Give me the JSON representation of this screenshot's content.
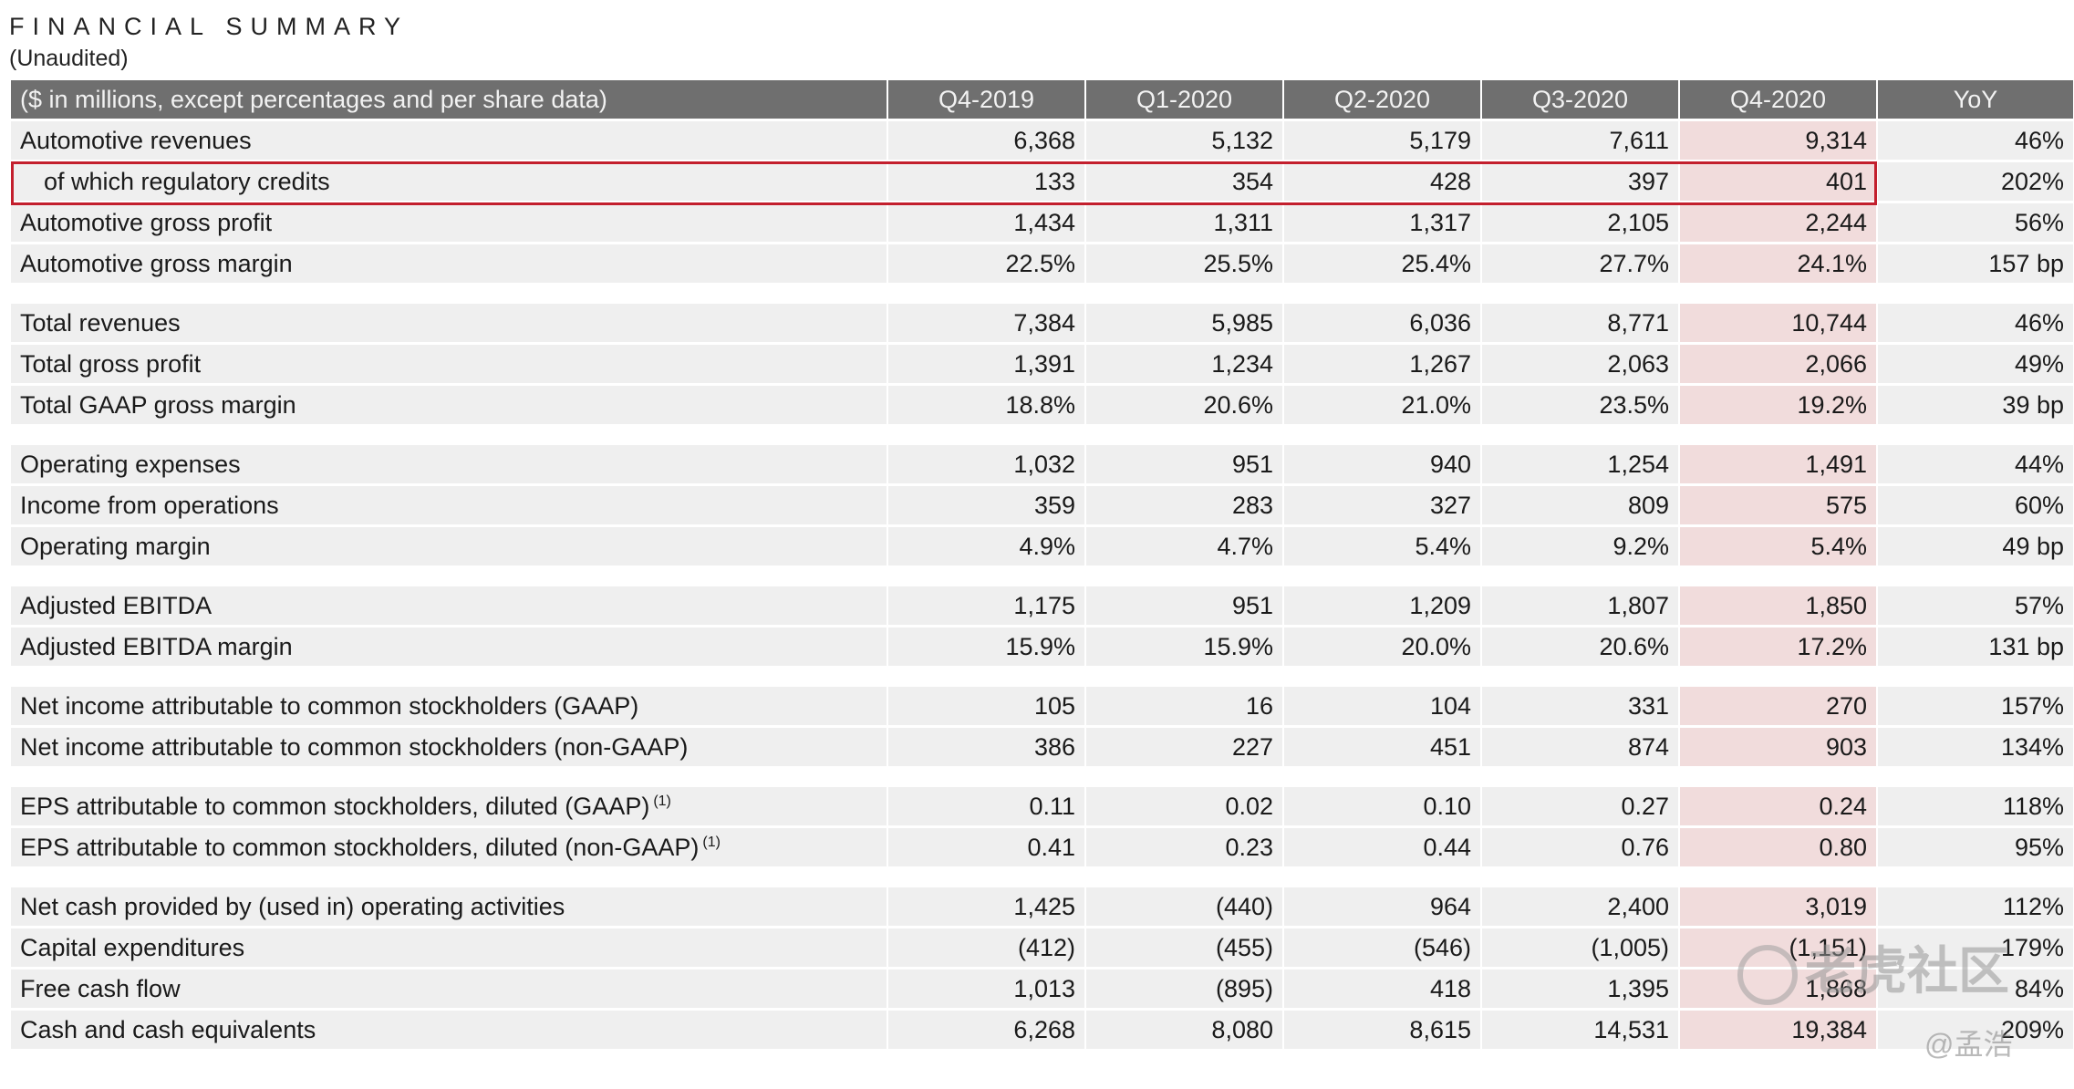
{
  "header": {
    "title": "FINANCIAL SUMMARY",
    "subtitle": "(Unaudited)"
  },
  "table": {
    "columns": [
      "($ in millions, except percentages and per share data)",
      "Q4-2019",
      "Q1-2020",
      "Q2-2020",
      "Q3-2020",
      "Q4-2020",
      "YoY"
    ],
    "rows": [
      {
        "label": "Automotive revenues",
        "values": [
          "6,368",
          "5,132",
          "5,179",
          "7,611",
          "9,314",
          "46%"
        ]
      },
      {
        "label": "of which regulatory credits",
        "values": [
          "133",
          "354",
          "428",
          "397",
          "401",
          "202%"
        ]
      },
      {
        "label": "Automotive gross profit",
        "values": [
          "1,434",
          "1,311",
          "1,317",
          "2,105",
          "2,244",
          "56%"
        ]
      },
      {
        "label": "Automotive gross margin",
        "values": [
          "22.5%",
          "25.5%",
          "25.4%",
          "27.7%",
          "24.1%",
          "157 bp"
        ]
      },
      {
        "label": "Total revenues",
        "values": [
          "7,384",
          "5,985",
          "6,036",
          "8,771",
          "10,744",
          "46%"
        ]
      },
      {
        "label": "Total gross profit",
        "values": [
          "1,391",
          "1,234",
          "1,267",
          "2,063",
          "2,066",
          "49%"
        ]
      },
      {
        "label": "Total GAAP gross margin",
        "values": [
          "18.8%",
          "20.6%",
          "21.0%",
          "23.5%",
          "19.2%",
          "39 bp"
        ]
      },
      {
        "label": "Operating expenses",
        "values": [
          "1,032",
          "951",
          "940",
          "1,254",
          "1,491",
          "44%"
        ]
      },
      {
        "label": "Income from operations",
        "values": [
          "359",
          "283",
          "327",
          "809",
          "575",
          "60%"
        ]
      },
      {
        "label": "Operating margin",
        "values": [
          "4.9%",
          "4.7%",
          "5.4%",
          "9.2%",
          "5.4%",
          "49 bp"
        ]
      },
      {
        "label": "Adjusted EBITDA",
        "values": [
          "1,175",
          "951",
          "1,209",
          "1,807",
          "1,850",
          "57%"
        ]
      },
      {
        "label": "Adjusted EBITDA margin",
        "values": [
          "15.9%",
          "15.9%",
          "20.0%",
          "20.6%",
          "17.2%",
          "131 bp"
        ]
      },
      {
        "label": "Net income attributable to common stockholders (GAAP)",
        "values": [
          "105",
          "16",
          "104",
          "331",
          "270",
          "157%"
        ]
      },
      {
        "label": "Net income attributable to common stockholders (non-GAAP)",
        "values": [
          "386",
          "227",
          "451",
          "874",
          "903",
          "134%"
        ]
      },
      {
        "label": "EPS attributable to common stockholders, diluted (GAAP)",
        "footnote": "(1)",
        "values": [
          "0.11",
          "0.02",
          "0.10",
          "0.27",
          "0.24",
          "118%"
        ]
      },
      {
        "label": "EPS attributable to common stockholders, diluted (non-GAAP)",
        "footnote": "(1)",
        "values": [
          "0.41",
          "0.23",
          "0.44",
          "0.76",
          "0.80",
          "95%"
        ]
      },
      {
        "label": "Net cash provided by (used in) operating activities",
        "values": [
          "1,425",
          "(440)",
          "964",
          "2,400",
          "3,019",
          "112%"
        ]
      },
      {
        "label": "Capital expenditures",
        "values": [
          "(412)",
          "(455)",
          "(546)",
          "(1,005)",
          "(1,151)",
          "179%"
        ]
      },
      {
        "label": "Free cash flow",
        "values": [
          "1,013",
          "(895)",
          "418",
          "1,395",
          "1,868",
          "84%"
        ]
      },
      {
        "label": "Cash and cash equivalents",
        "values": [
          "6,268",
          "8,080",
          "8,615",
          "14,531",
          "19,384",
          "209%"
        ]
      }
    ]
  },
  "watermark": {
    "text": "老虎社区",
    "author": "@孟浩"
  },
  "colors": {
    "header_bg": "#6f6f6f",
    "row_bg": "#efefef",
    "highlight_col_bg": "#f1dcdc",
    "highlight_box": "#c31f2d"
  }
}
